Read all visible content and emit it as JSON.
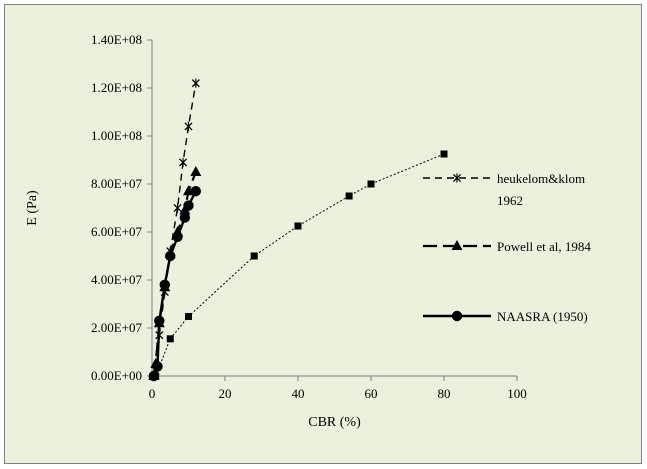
{
  "chart_data": {
    "type": "line",
    "xlabel": "CBR (%)",
    "ylabel": "E (Pa)",
    "xlim": [
      0,
      100
    ],
    "ylim": [
      0,
      140000000
    ],
    "x_ticks": [
      "0",
      "20",
      "40",
      "60",
      "80",
      "100"
    ],
    "y_ticks": [
      "0.00E+00",
      "2.00E+07",
      "4.00E+07",
      "6.00E+07",
      "8.00E+07",
      "1.00E+08",
      "1.20E+08",
      "1.40E+08"
    ],
    "grid": false,
    "legend_position": "right",
    "series": [
      {
        "name": "heukelom&klom 1962",
        "name_lines": [
          "heukelom&klom",
          "1962"
        ],
        "line_style": "dashed",
        "marker": "x-star",
        "x": [
          2,
          3.5,
          5,
          7,
          8.5,
          10,
          12
        ],
        "y": [
          17000000,
          35000000,
          52000000,
          70000000,
          89000000,
          104000000,
          122000000
        ]
      },
      {
        "name": "Powell et al, 1984",
        "name_lines": [
          "Powell et al, 1984"
        ],
        "line_style": "long-dashed",
        "marker": "triangle",
        "x": [
          0.5,
          1,
          2,
          3.5,
          5,
          7,
          9,
          10,
          12
        ],
        "y": [
          0,
          5000000,
          22000000,
          37000000,
          51000000,
          60000000,
          69000000,
          77000000,
          85000000
        ]
      },
      {
        "name": "NAASRA (1950)",
        "name_lines": [
          "NAASRA (1950)"
        ],
        "line_style": "solid",
        "marker": "circle",
        "x": [
          0.5,
          1.5,
          2,
          3.5,
          5,
          7,
          9,
          10,
          12
        ],
        "y": [
          0,
          4000000,
          23000000,
          38000000,
          50000000,
          58000000,
          66000000,
          71000000,
          77000000
        ]
      },
      {
        "name": "",
        "line_style": "dotted",
        "marker": "square",
        "x": [
          1,
          5,
          10,
          28,
          40,
          54,
          60,
          80
        ],
        "y": [
          0,
          15500000,
          24800000,
          50000000,
          62500000,
          75000000,
          80000000,
          92500000
        ]
      }
    ]
  }
}
